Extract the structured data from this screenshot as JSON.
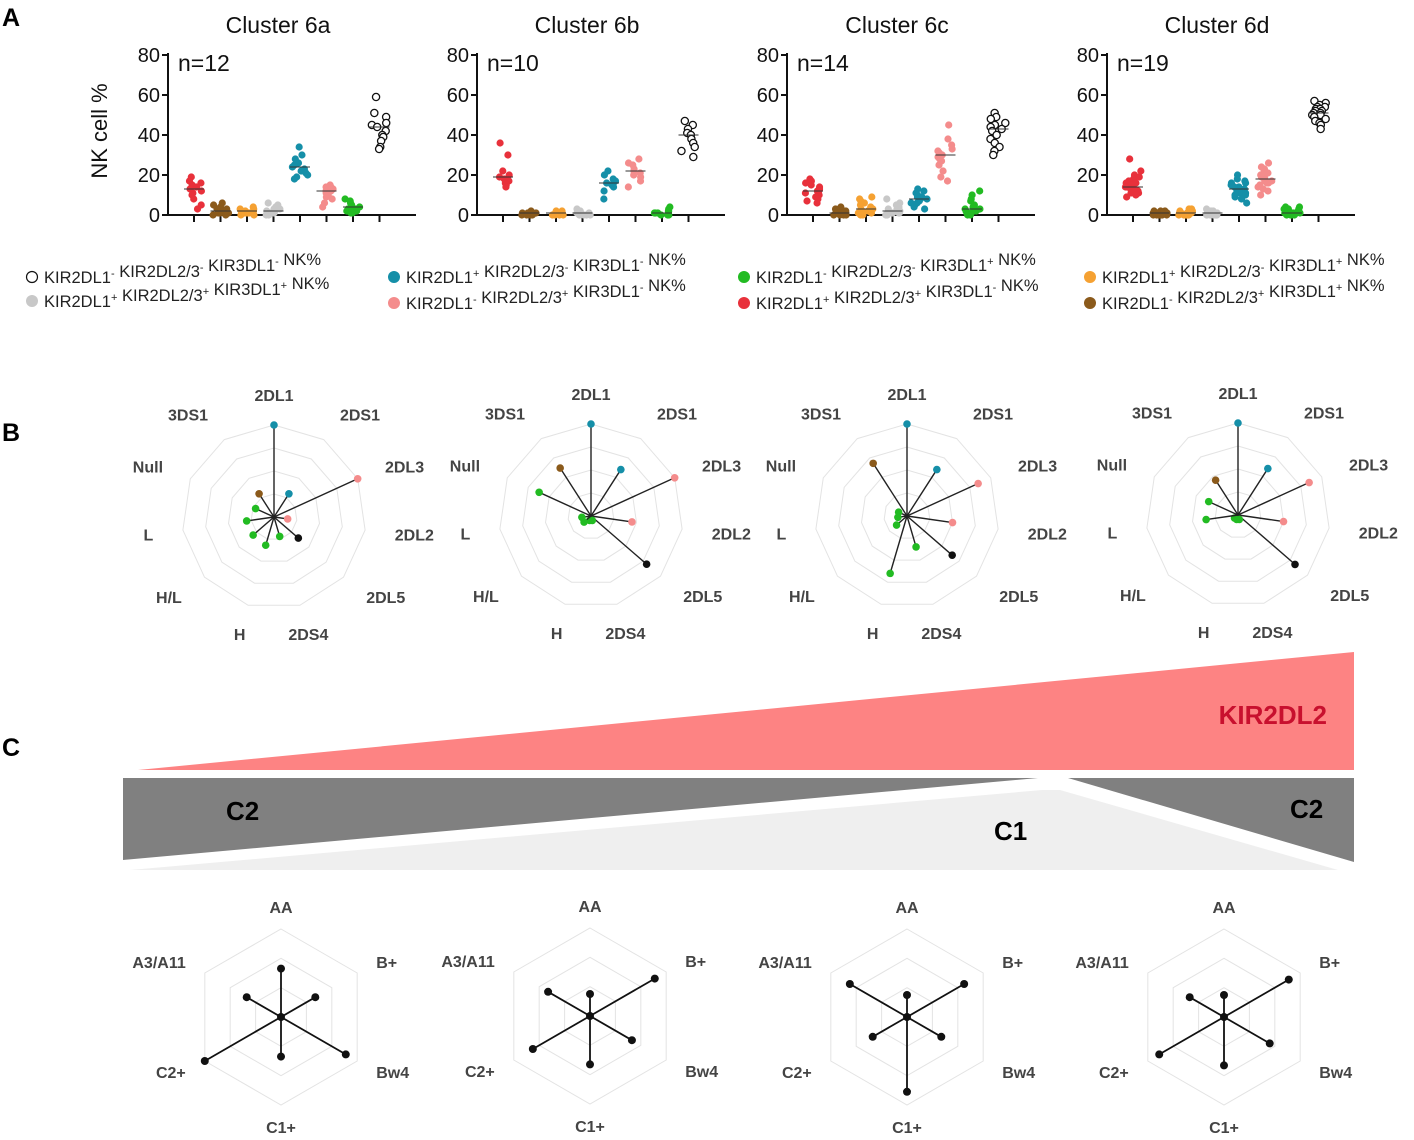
{
  "panel_letters": [
    "A",
    "B",
    "C"
  ],
  "colors": {
    "red": "#e8313b",
    "brown": "#8b5a1b",
    "orange": "#f5a132",
    "grey": "#c8c8c8",
    "teal": "#158fa8",
    "pink": "#f48c8c",
    "green": "#22bb22",
    "black": "#111111",
    "kir_wedge": "#fd8383",
    "c2_wedge": "#808080",
    "c1_wedge": "#efefef"
  },
  "chart_data": [
    {
      "type": "scatter",
      "title": "Cluster 6a",
      "n_label": "n=12",
      "ylabel": "NK cell %",
      "ylim": [
        0,
        80
      ],
      "yticks": [
        0,
        20,
        40,
        60,
        80
      ],
      "groups": [
        "KIR2DL1+ KIR2DL2/3+ KIR3DL1-",
        "KIR2DL1- KIR2DL2/3+ KIR3DL1+",
        "KIR2DL1+ KIR2DL2/3- KIR3DL1+",
        "KIR2DL1+ KIR2DL2/3+ KIR3DL1+",
        "KIR2DL1+ KIR2DL2/3- KIR3DL1-",
        "KIR2DL1- KIR2DL2/3+ KIR3DL1-",
        "KIR2DL1- KIR2DL2/3- KIR3DL1+",
        "KIR2DL1- KIR2DL2/3- KIR3DL1-"
      ],
      "series": [
        {
          "name": "KIR2DL1+ KIR2DL2/3+ KIR3DL1-",
          "color": "red",
          "values": [
            19,
            17,
            16,
            15,
            14,
            13,
            12,
            11,
            10,
            8,
            5,
            3
          ]
        },
        {
          "name": "KIR2DL1- KIR2DL2/3+ KIR3DL1+",
          "color": "brown",
          "values": [
            6,
            5,
            4,
            3,
            3,
            2,
            2,
            1,
            1,
            1,
            0,
            0
          ]
        },
        {
          "name": "KIR2DL1+ KIR2DL2/3- KIR3DL1+",
          "color": "orange",
          "values": [
            4,
            3,
            3,
            2,
            2,
            2,
            1,
            1,
            1,
            1,
            0,
            0
          ]
        },
        {
          "name": "KIR2DL1+ KIR2DL2/3+ KIR3DL1+",
          "color": "grey",
          "values": [
            6,
            5,
            4,
            3,
            3,
            2,
            2,
            1,
            1,
            1,
            0,
            0
          ]
        },
        {
          "name": "KIR2DL1+ KIR2DL2/3- KIR3DL1-",
          "color": "teal",
          "values": [
            34,
            30,
            28,
            26,
            25,
            24,
            23,
            22,
            21,
            20,
            19,
            18
          ]
        },
        {
          "name": "KIR2DL1- KIR2DL2/3+ KIR3DL1-",
          "color": "pink",
          "values": [
            15,
            14,
            14,
            13,
            12,
            12,
            11,
            10,
            9,
            8,
            6,
            4
          ]
        },
        {
          "name": "KIR2DL1- KIR2DL2/3- KIR3DL1+",
          "color": "green",
          "values": [
            8,
            7,
            6,
            5,
            4,
            4,
            3,
            3,
            2,
            2,
            1,
            1
          ]
        },
        {
          "name": "KIR2DL1- KIR2DL2/3- KIR3DL1-",
          "color": "black",
          "hollow": true,
          "values": [
            59,
            51,
            49,
            46,
            45,
            44,
            42,
            40,
            39,
            37,
            34,
            33
          ]
        }
      ]
    },
    {
      "type": "scatter",
      "title": "Cluster 6b",
      "n_label": "n=10",
      "ylim": [
        0,
        80
      ],
      "yticks": [
        0,
        20,
        40,
        60,
        80
      ],
      "series": [
        {
          "name": "KIR2DL1+ KIR2DL2/3+ KIR3DL1-",
          "color": "red",
          "values": [
            36,
            30,
            22,
            20,
            19,
            18,
            17,
            16,
            15,
            14
          ]
        },
        {
          "name": "KIR2DL1- KIR2DL2/3+ KIR3DL1+",
          "color": "brown",
          "values": [
            2,
            1,
            1,
            1,
            1,
            0,
            0,
            0,
            0,
            0
          ]
        },
        {
          "name": "KIR2DL1+ KIR2DL2/3- KIR3DL1+",
          "color": "orange",
          "values": [
            2,
            2,
            1,
            1,
            1,
            1,
            0,
            0,
            0,
            0
          ]
        },
        {
          "name": "KIR2DL1+ KIR2DL2/3+ KIR3DL1+",
          "color": "grey",
          "values": [
            3,
            2,
            2,
            1,
            1,
            1,
            0,
            0,
            0,
            0
          ]
        },
        {
          "name": "KIR2DL1+ KIR2DL2/3- KIR3DL1-",
          "color": "teal",
          "values": [
            22,
            20,
            18,
            17,
            16,
            16,
            15,
            14,
            12,
            8
          ]
        },
        {
          "name": "KIR2DL1- KIR2DL2/3+ KIR3DL1-",
          "color": "pink",
          "values": [
            28,
            26,
            25,
            23,
            22,
            21,
            20,
            19,
            17,
            14
          ]
        },
        {
          "name": "KIR2DL1- KIR2DL2/3- KIR3DL1+",
          "color": "green",
          "values": [
            4,
            3,
            2,
            2,
            1,
            1,
            1,
            0,
            0,
            0
          ]
        },
        {
          "name": "KIR2DL1- KIR2DL2/3- KIR3DL1-",
          "color": "black",
          "hollow": true,
          "values": [
            47,
            45,
            43,
            41,
            40,
            38,
            36,
            34,
            32,
            29
          ]
        }
      ]
    },
    {
      "type": "scatter",
      "title": "Cluster 6c",
      "n_label": "n=14",
      "ylim": [
        0,
        80
      ],
      "yticks": [
        0,
        20,
        40,
        60,
        80
      ],
      "series": [
        {
          "name": "KIR2DL1+ KIR2DL2/3+ KIR3DL1-",
          "color": "red",
          "values": [
            18,
            17,
            16,
            15,
            14,
            13,
            12,
            12,
            11,
            10,
            9,
            8,
            7,
            6
          ]
        },
        {
          "name": "KIR2DL1- KIR2DL2/3+ KIR3DL1+",
          "color": "brown",
          "values": [
            4,
            3,
            3,
            2,
            2,
            2,
            1,
            1,
            1,
            1,
            0,
            0,
            0,
            0
          ]
        },
        {
          "name": "KIR2DL1+ KIR2DL2/3- KIR3DL1+",
          "color": "orange",
          "values": [
            9,
            8,
            7,
            6,
            5,
            4,
            3,
            3,
            2,
            2,
            1,
            1,
            0,
            0
          ]
        },
        {
          "name": "KIR2DL1+ KIR2DL2/3+ KIR3DL1+",
          "color": "grey",
          "values": [
            8,
            6,
            5,
            4,
            3,
            3,
            2,
            2,
            1,
            1,
            1,
            0,
            0,
            0
          ]
        },
        {
          "name": "KIR2DL1+ KIR2DL2/3- KIR3DL1-",
          "color": "teal",
          "values": [
            13,
            12,
            11,
            10,
            9,
            9,
            8,
            8,
            7,
            6,
            6,
            5,
            4,
            3
          ]
        },
        {
          "name": "KIR2DL1- KIR2DL2/3+ KIR3DL1-",
          "color": "pink",
          "values": [
            45,
            38,
            35,
            33,
            32,
            31,
            30,
            29,
            28,
            27,
            25,
            22,
            19,
            17
          ]
        },
        {
          "name": "KIR2DL1- KIR2DL2/3- KIR3DL1+",
          "color": "green",
          "values": [
            12,
            10,
            8,
            7,
            5,
            4,
            3,
            3,
            2,
            2,
            1,
            1,
            0,
            0
          ]
        },
        {
          "name": "KIR2DL1- KIR2DL2/3- KIR3DL1-",
          "color": "black",
          "hollow": true,
          "values": [
            51,
            49,
            48,
            46,
            45,
            44,
            43,
            42,
            40,
            38,
            36,
            34,
            32,
            30
          ]
        }
      ]
    },
    {
      "type": "scatter",
      "title": "Cluster 6d",
      "n_label": "n=19",
      "ylim": [
        0,
        80
      ],
      "yticks": [
        0,
        20,
        40,
        60,
        80
      ],
      "series": [
        {
          "name": "KIR2DL1+ KIR2DL2/3+ KIR3DL1-",
          "color": "red",
          "values": [
            28,
            22,
            20,
            19,
            18,
            17,
            16,
            16,
            15,
            14,
            14,
            13,
            13,
            12,
            12,
            11,
            11,
            10,
            9
          ]
        },
        {
          "name": "KIR2DL1- KIR2DL2/3+ KIR3DL1+",
          "color": "brown",
          "values": [
            2,
            2,
            2,
            1,
            1,
            1,
            1,
            1,
            1,
            1,
            0,
            0,
            0,
            0,
            0,
            0,
            0,
            0,
            0
          ]
        },
        {
          "name": "KIR2DL1+ KIR2DL2/3- KIR3DL1+",
          "color": "orange",
          "values": [
            3,
            3,
            2,
            2,
            2,
            2,
            1,
            1,
            1,
            1,
            1,
            1,
            0,
            0,
            0,
            0,
            0,
            0,
            0
          ]
        },
        {
          "name": "KIR2DL1+ KIR2DL2/3+ KIR3DL1+",
          "color": "grey",
          "values": [
            3,
            2,
            2,
            2,
            1,
            1,
            1,
            1,
            1,
            1,
            1,
            0,
            0,
            0,
            0,
            0,
            0,
            0,
            0
          ]
        },
        {
          "name": "KIR2DL1+ KIR2DL2/3- KIR3DL1-",
          "color": "teal",
          "values": [
            20,
            18,
            17,
            16,
            16,
            15,
            14,
            14,
            13,
            13,
            12,
            12,
            11,
            11,
            10,
            10,
            9,
            8,
            6
          ]
        },
        {
          "name": "KIR2DL1- KIR2DL2/3+ KIR3DL1-",
          "color": "pink",
          "values": [
            26,
            24,
            23,
            22,
            21,
            20,
            20,
            19,
            18,
            18,
            17,
            17,
            16,
            16,
            15,
            14,
            13,
            12,
            10
          ]
        },
        {
          "name": "KIR2DL1- KIR2DL2/3- KIR3DL1+",
          "color": "green",
          "values": [
            4,
            4,
            3,
            3,
            3,
            2,
            2,
            2,
            2,
            1,
            1,
            1,
            1,
            1,
            1,
            0,
            0,
            0,
            0
          ]
        },
        {
          "name": "KIR2DL1- KIR2DL2/3- KIR3DL1-",
          "color": "black",
          "hollow": true,
          "values": [
            57,
            56,
            55,
            54,
            54,
            53,
            53,
            52,
            52,
            51,
            51,
            50,
            50,
            49,
            48,
            47,
            46,
            45,
            43
          ]
        }
      ]
    }
  ],
  "legend": [
    {
      "base": [
        "KIR2DL1",
        "KIR2DL2/3",
        "KIR3DL1"
      ],
      "signs": [
        "-",
        "-",
        "-"
      ],
      "suffix": "NK%",
      "color": "black",
      "hollow": true
    },
    {
      "base": [
        "KIR2DL1",
        "KIR2DL2/3",
        "KIR3DL1"
      ],
      "signs": [
        "+",
        "+",
        "+"
      ],
      "suffix": "NK%",
      "color": "grey"
    },
    {
      "base": [
        "KIR2DL1",
        "KIR2DL2/3",
        "KIR3DL1"
      ],
      "signs": [
        "+",
        "-",
        "-"
      ],
      "suffix": "NK%",
      "color": "teal"
    },
    {
      "base": [
        "KIR2DL1",
        "KIR2DL2/3",
        "KIR3DL1"
      ],
      "signs": [
        "-",
        "+",
        "-"
      ],
      "suffix": "NK%",
      "color": "pink"
    },
    {
      "base": [
        "KIR2DL1",
        "KIR2DL2/3",
        "KIR3DL1"
      ],
      "signs": [
        "-",
        "-",
        "+"
      ],
      "suffix": "NK%",
      "color": "green"
    },
    {
      "base": [
        "KIR2DL1",
        "KIR2DL2/3",
        "KIR3DL1"
      ],
      "signs": [
        "+",
        "+",
        "-"
      ],
      "suffix": "NK%",
      "color": "red"
    },
    {
      "base": [
        "KIR2DL1",
        "KIR2DL2/3",
        "KIR3DL1"
      ],
      "signs": [
        "+",
        "-",
        "+"
      ],
      "suffix": "NK%",
      "color": "orange"
    },
    {
      "base": [
        "KIR2DL1",
        "KIR2DL2/3",
        "KIR3DL1"
      ],
      "signs": [
        "-",
        "+",
        "+"
      ],
      "suffix": "NK%",
      "color": "brown"
    }
  ],
  "radar_kir": {
    "axes": [
      "2DL1",
      "2DS1",
      "2DL3",
      "2DL2",
      "2DL5",
      "2DS4",
      "H",
      "H/L",
      "L",
      "Null",
      "3DS1"
    ],
    "axis_colors": [
      "teal",
      "teal",
      "pink",
      "pink",
      "black",
      "green",
      "green",
      "green",
      "green",
      "green",
      "brown"
    ],
    "max": 1,
    "clusters": [
      {
        "name": "Cluster 6a",
        "values": [
          1.0,
          0.3,
          1.0,
          0.15,
          0.35,
          0.22,
          0.32,
          0.3,
          0.3,
          0.22,
          0.3
        ]
      },
      {
        "name": "Cluster 6b",
        "values": [
          1.0,
          0.6,
          1.0,
          0.45,
          0.8,
          0.05,
          0.05,
          0.1,
          0.1,
          0.62,
          0.62
        ]
      },
      {
        "name": "Cluster 6c",
        "values": [
          1.0,
          0.6,
          0.85,
          0.5,
          0.65,
          0.35,
          0.65,
          0.15,
          0.1,
          0.1,
          0.68
        ]
      },
      {
        "name": "Cluster 6d",
        "values": [
          1.0,
          0.6,
          0.85,
          0.5,
          0.82,
          0.05,
          0.05,
          0.05,
          0.35,
          0.35,
          0.45
        ]
      }
    ]
  },
  "wedges": {
    "kir2dl2_label": "KIR2DL2",
    "c2_left_label": "C2",
    "c1_label": "C1",
    "c2_right_label": "C2"
  },
  "radar_hla": {
    "axes": [
      "AA",
      "B+",
      "Bw4",
      "C1+",
      "C2+",
      "A3/A11"
    ],
    "max": 1,
    "clusters": [
      {
        "name": "Cluster 6a",
        "values": [
          0.55,
          0.45,
          0.85,
          0.45,
          1.0,
          0.45
        ]
      },
      {
        "name": "Cluster 6b",
        "values": [
          0.25,
          0.85,
          0.55,
          0.55,
          0.75,
          0.55
        ]
      },
      {
        "name": "Cluster 6c",
        "values": [
          0.25,
          0.75,
          0.45,
          0.85,
          0.45,
          0.75
        ]
      },
      {
        "name": "Cluster 6d",
        "values": [
          0.25,
          0.85,
          0.6,
          0.55,
          0.85,
          0.45
        ]
      }
    ]
  }
}
